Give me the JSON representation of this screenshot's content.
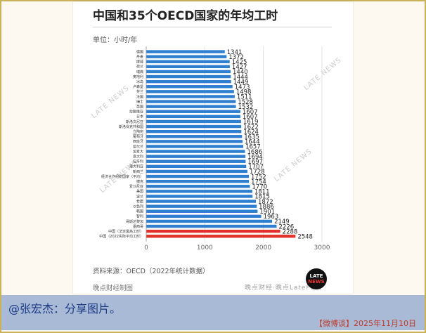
{
  "post": {
    "caption": "@张宏杰：分享图片。",
    "footer": "【微博谈】2025年11月10日"
  },
  "card": {
    "title": "中国和35个OECD国家的年均工时",
    "unit": "单位：小时/年",
    "source": "资料来源：OECD（2022年统计数据）",
    "credit": "晚点财经制图",
    "watermark": "LATE NEWS",
    "watermark_bottom": "晚点财经·晚点LatePost",
    "logo_line1": "LATE",
    "logo_line2": "NEWS"
  },
  "chart_data": {
    "type": "bar",
    "orientation": "horizontal",
    "categories": [
      "德国",
      "丹麦",
      "挪威",
      "荷兰",
      "瑞典",
      "奥地利",
      "冰岛",
      "卢森堡",
      "芬兰",
      "法国",
      "瑞士",
      "英国",
      "拉脱维亚",
      "日本",
      "斯洛文尼亚",
      "斯洛伐克共和国",
      "立陶宛",
      "葡萄牙",
      "西班牙",
      "爱尔兰",
      "加拿大",
      "意大利",
      "匈牙利",
      "澳大利亚",
      "新西兰",
      "经济合作组织国家（平均）",
      "捷克",
      "爱沙尼亚",
      "美国",
      "波兰",
      "希腊",
      "以色列",
      "韩国",
      "智利",
      "哥斯达黎加",
      "墨西哥",
      "中国（法定最高工时）",
      "中国（2022实际平均工时）"
    ],
    "values": [
      1341,
      1372,
      1425,
      1427,
      1440,
      1444,
      1449,
      1473,
      1498,
      1511,
      1528,
      1532,
      1607,
      1607,
      1619,
      1622,
      1624,
      1635,
      1644,
      1657,
      1686,
      1694,
      1697,
      1707,
      1728,
      1752,
      1754,
      1770,
      1811,
      1815,
      1872,
      1886,
      1901,
      1963,
      2149,
      2226,
      2288,
      2548
    ],
    "highlight": [
      false,
      false,
      false,
      false,
      false,
      false,
      false,
      false,
      false,
      false,
      false,
      false,
      false,
      false,
      false,
      false,
      false,
      false,
      false,
      false,
      false,
      false,
      false,
      false,
      false,
      false,
      false,
      false,
      false,
      false,
      false,
      false,
      false,
      false,
      false,
      false,
      true,
      true
    ],
    "xlim": [
      0,
      3000
    ],
    "xticks": [
      "0",
      "1000",
      "2000",
      "3000"
    ],
    "colors": {
      "bar": "#2e7fd0",
      "highlight": "#e0342b"
    },
    "grid": true
  }
}
